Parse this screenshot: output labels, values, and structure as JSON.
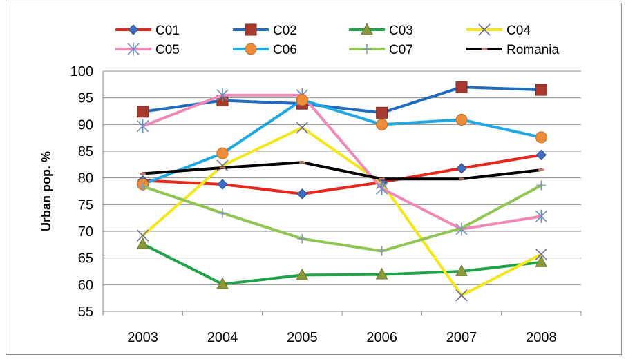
{
  "chart_data": {
    "type": "line",
    "title": "",
    "xlabel": "",
    "ylabel": "Urban pop. %",
    "categories": [
      "2003",
      "2004",
      "2005",
      "2006",
      "2007",
      "2008"
    ],
    "ylim": [
      55,
      100
    ],
    "yticks": [
      55,
      60,
      65,
      70,
      75,
      80,
      85,
      90,
      95,
      100
    ],
    "grid": true,
    "legend_position": "top",
    "series": [
      {
        "name": "C01",
        "color": "#e8261c",
        "marker": "diamond",
        "marker_color": "#3f6dbf",
        "values": [
          79.5,
          78.8,
          77.0,
          79.2,
          81.8,
          84.3
        ]
      },
      {
        "name": "C02",
        "color": "#1f6bbd",
        "marker": "square",
        "marker_color": "#a63a2e",
        "values": [
          92.4,
          94.5,
          93.9,
          92.2,
          97.0,
          96.5
        ]
      },
      {
        "name": "C03",
        "color": "#22a34a",
        "marker": "triangle",
        "marker_color": "#8a9a3a",
        "values": [
          67.6,
          60.1,
          61.8,
          61.9,
          62.5,
          64.2
        ]
      },
      {
        "name": "C04",
        "color": "#f4e619",
        "marker": "x",
        "marker_color": "#6e6e9e",
        "values": [
          69.2,
          82.3,
          89.4,
          79.0,
          58.0,
          65.7
        ]
      },
      {
        "name": "C05",
        "color": "#ef89b8",
        "marker": "asterisk",
        "marker_color": "#6a8fc4",
        "values": [
          89.7,
          95.5,
          95.5,
          78.0,
          70.4,
          72.8
        ]
      },
      {
        "name": "C06",
        "color": "#1fa8e4",
        "marker": "circle",
        "marker_color": "#ef8c3a",
        "values": [
          78.8,
          84.6,
          94.6,
          90.0,
          90.9,
          87.6
        ]
      },
      {
        "name": "C07",
        "color": "#8ec651",
        "marker": "plus",
        "marker_color": "#8a96b4",
        "values": [
          78.4,
          73.4,
          68.6,
          66.3,
          70.6,
          78.6
        ]
      },
      {
        "name": "Romania",
        "color": "#000000",
        "marker": "dash",
        "marker_color": "#c97a6a",
        "values": [
          80.8,
          81.9,
          82.9,
          79.8,
          79.8,
          81.5
        ]
      }
    ]
  }
}
